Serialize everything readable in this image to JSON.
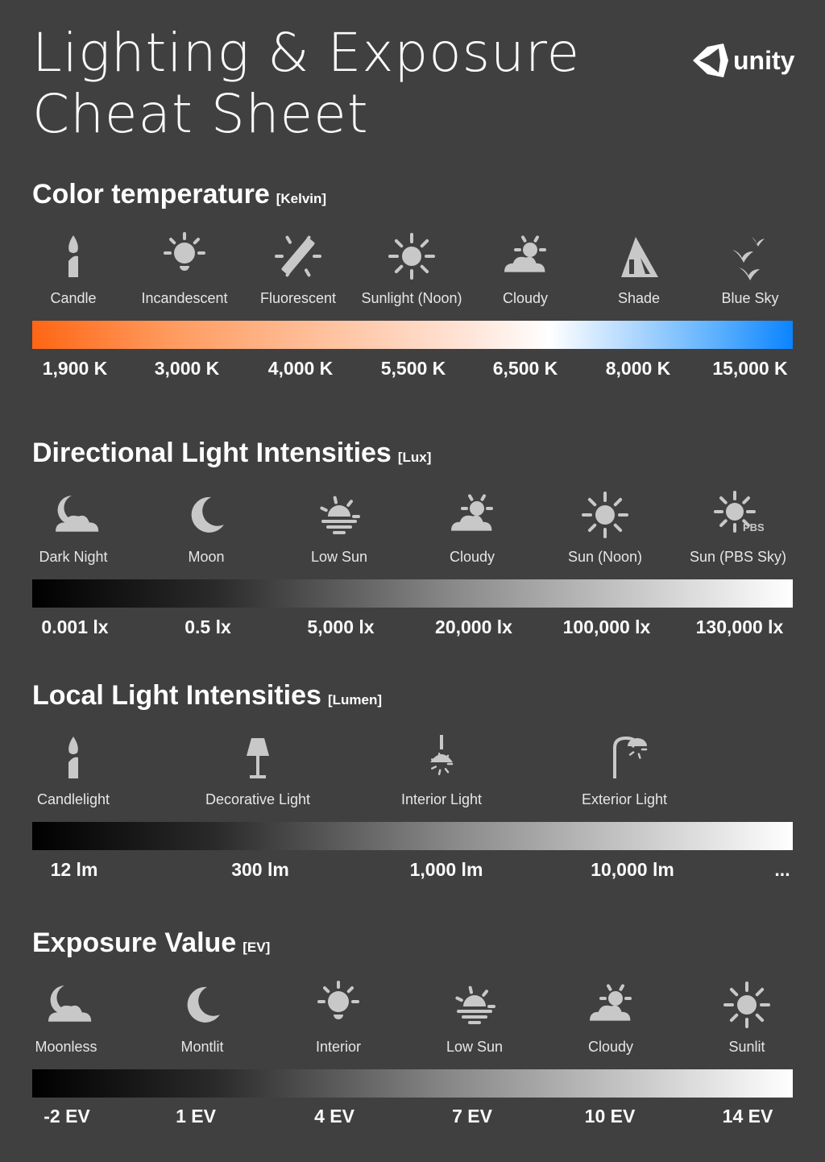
{
  "title": [
    "Lighting & Exposure",
    "Cheat Sheet"
  ],
  "logo": {
    "text": "unity",
    "icon": "unity-cube-icon"
  },
  "sections": [
    {
      "heading": "Color temperature",
      "unit": "[Kelvin]",
      "items": [
        {
          "label": "Candle",
          "icon": "candle"
        },
        {
          "label": "Incandescent",
          "icon": "bulb"
        },
        {
          "label": "Fluorescent",
          "icon": "fluorescent"
        },
        {
          "label": "Sunlight (Noon)",
          "icon": "sun"
        },
        {
          "label": "Cloudy",
          "icon": "cloudy"
        },
        {
          "label": "Shade",
          "icon": "shade"
        },
        {
          "label": "Blue Sky",
          "icon": "birds"
        }
      ],
      "gradient": [
        "#ff6614 0%",
        "#ff9a5e 18%",
        "#ffc4a2 40%",
        "#ffe6da 58%",
        "#ffffff 68%",
        "#a8d4ff 80%",
        "#5cb0ff 90%",
        "#0a84ff 100%"
      ],
      "values": [
        "1,900 K",
        "3,000 K",
        "4,000 K",
        "5,500 K",
        "6,500 K",
        "8,000 K",
        "15,000 K"
      ]
    },
    {
      "heading": "Directional Light Intensities",
      "unit": "[Lux]",
      "items": [
        {
          "label": "Dark Night",
          "icon": "moon-cloud"
        },
        {
          "label": "Moon",
          "icon": "moon"
        },
        {
          "label": "Low Sun",
          "icon": "low-sun"
        },
        {
          "label": "Cloudy",
          "icon": "cloudy"
        },
        {
          "label": "Sun (Noon)",
          "icon": "sun"
        },
        {
          "label": "Sun (PBS Sky)",
          "icon": "sun-pbs",
          "badge": "PBS"
        }
      ],
      "gradient": [
        "#000000 0%",
        "#2a2a2a 24%",
        "#888888 55%",
        "#ffffff 100%"
      ],
      "values": [
        "0.001 lx",
        "0.5 lx",
        "5,000 lx",
        "20,000 lx",
        "100,000 lx",
        "130,000 lx"
      ]
    },
    {
      "heading": "Local Light Intensities",
      "unit": "[Lumen]",
      "items": [
        {
          "label": "Candlelight",
          "icon": "candle"
        },
        {
          "label": "Decorative Light",
          "icon": "lamp"
        },
        {
          "label": "Interior Light",
          "icon": "ceiling-lamp"
        },
        {
          "label": "Exterior Light",
          "icon": "street-lamp"
        }
      ],
      "gradient": [
        "#000000 0%",
        "#2a2a2a 24%",
        "#888888 55%",
        "#ffffff 100%"
      ],
      "values": [
        "12 lm",
        "300 lm",
        "1,000 lm",
        "10,000 lm",
        "..."
      ]
    },
    {
      "heading": "Exposure Value",
      "unit": "[EV]",
      "items": [
        {
          "label": "Moonless",
          "icon": "moon-cloud"
        },
        {
          "label": "Montlit",
          "icon": "moon"
        },
        {
          "label": "Interior",
          "icon": "bulb"
        },
        {
          "label": "Low Sun",
          "icon": "low-sun"
        },
        {
          "label": "Cloudy",
          "icon": "cloudy"
        },
        {
          "label": "Sunlit",
          "icon": "sun"
        }
      ],
      "gradient": [
        "#000000 0%",
        "#2a2a2a 24%",
        "#888888 55%",
        "#ffffff 100%"
      ],
      "values": [
        "-2 EV",
        "1 EV",
        "4 EV",
        "7 EV",
        "10 EV",
        "14 EV"
      ]
    }
  ],
  "colors": {
    "background": "#404040",
    "icon": "#c8c8c8",
    "text": "#ffffff"
  }
}
